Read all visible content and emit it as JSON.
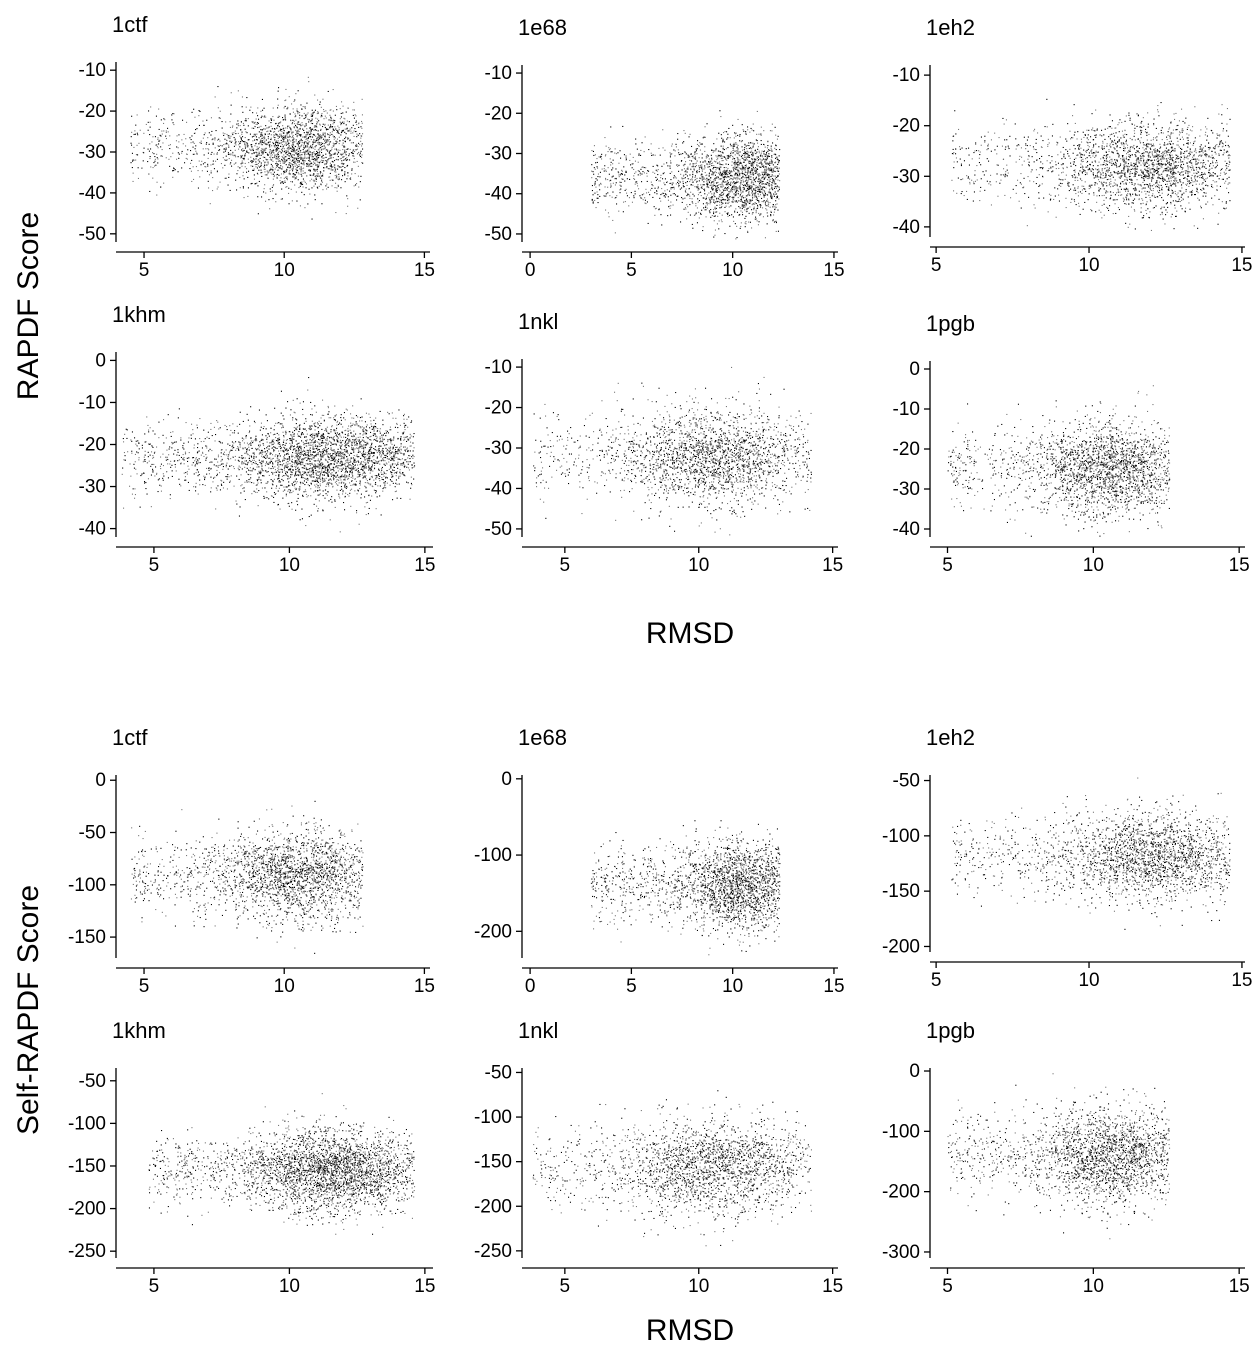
{
  "figure": {
    "blocks": [
      {
        "ylabel": "RAPDF Score",
        "xlabel": "RMSD"
      },
      {
        "ylabel": "Self-RAPDF Score",
        "xlabel": "RMSD"
      }
    ]
  },
  "chart_data": [
    {
      "type": "scatter",
      "title": "1ctf",
      "xlabel": "RMSD",
      "ylabel": "RAPDF Score",
      "xlim": [
        4,
        15.2
      ],
      "ylim": [
        -52,
        -8
      ],
      "xticks": [
        5,
        10,
        15
      ],
      "yticks": [
        -10,
        -20,
        -30,
        -40,
        -50
      ],
      "cloud": {
        "x_min": 4.5,
        "x_max": 12.8,
        "x_center": 10.5,
        "y_center": -29,
        "y_spread": 5.5,
        "n": 2200
      }
    },
    {
      "type": "scatter",
      "title": "1e68",
      "xlabel": "RMSD",
      "ylabel": "RAPDF Score",
      "xlim": [
        -0.4,
        15.2
      ],
      "ylim": [
        -52,
        -8
      ],
      "xticks": [
        0,
        5,
        10,
        15
      ],
      "yticks": [
        -10,
        -20,
        -30,
        -40,
        -50
      ],
      "cloud": {
        "x_min": 3,
        "x_max": 12.3,
        "x_center": 10.5,
        "y_center": -36,
        "y_spread": 5.5,
        "n": 2200
      }
    },
    {
      "type": "scatter",
      "title": "1eh2",
      "xlabel": "RMSD",
      "ylabel": "RAPDF Score",
      "xlim": [
        4.8,
        15.1
      ],
      "ylim": [
        -42,
        -8
      ],
      "xticks": [
        5,
        10,
        15
      ],
      "yticks": [
        -10,
        -20,
        -30,
        -40
      ],
      "cloud": {
        "x_min": 5.5,
        "x_max": 14.6,
        "x_center": 12,
        "y_center": -28,
        "y_spread": 4.5,
        "n": 2200
      }
    },
    {
      "type": "scatter",
      "title": "1khm",
      "xlabel": "RMSD",
      "ylabel": "RAPDF Score",
      "xlim": [
        3.6,
        15.3
      ],
      "ylim": [
        -42,
        2
      ],
      "xticks": [
        5,
        10,
        15
      ],
      "yticks": [
        0,
        -10,
        -20,
        -30,
        -40
      ],
      "cloud": {
        "x_min": 3.8,
        "x_max": 14.6,
        "x_center": 11.5,
        "y_center": -23,
        "y_spread": 5,
        "n": 3000
      }
    },
    {
      "type": "scatter",
      "title": "1nkl",
      "xlabel": "RMSD",
      "ylabel": "RAPDF Score",
      "xlim": [
        3.4,
        15.2
      ],
      "ylim": [
        -52,
        -8
      ],
      "xticks": [
        5,
        10,
        15
      ],
      "yticks": [
        -10,
        -20,
        -30,
        -40,
        -50
      ],
      "cloud": {
        "x_min": 3.8,
        "x_max": 14.2,
        "x_center": 10.5,
        "y_center": -32,
        "y_spread": 6,
        "n": 2200
      }
    },
    {
      "type": "scatter",
      "title": "1pgb",
      "xlabel": "RMSD",
      "ylabel": "RAPDF Score",
      "xlim": [
        4.4,
        15.2
      ],
      "ylim": [
        -42,
        2
      ],
      "xticks": [
        5,
        10,
        15
      ],
      "yticks": [
        0,
        -10,
        -20,
        -30,
        -40
      ],
      "cloud": {
        "x_min": 5,
        "x_max": 12.6,
        "x_center": 10.5,
        "y_center": -25,
        "y_spread": 6,
        "n": 2200
      }
    },
    {
      "type": "scatter",
      "title": "1ctf",
      "xlabel": "RMSD",
      "ylabel": "Self-RAPDF Score",
      "xlim": [
        4,
        15.2
      ],
      "ylim": [
        -170,
        5
      ],
      "xticks": [
        5,
        10,
        15
      ],
      "yticks": [
        0,
        -50,
        -100,
        -150
      ],
      "cloud": {
        "x_min": 4.5,
        "x_max": 12.8,
        "x_center": 10.5,
        "y_center": -90,
        "y_spread": 22,
        "n": 2200
      }
    },
    {
      "type": "scatter",
      "title": "1e68",
      "xlabel": "RMSD",
      "ylabel": "Self-RAPDF Score",
      "xlim": [
        -0.4,
        15.2
      ],
      "ylim": [
        -235,
        5
      ],
      "xticks": [
        0,
        5,
        10,
        15
      ],
      "yticks": [
        0,
        -100,
        -200
      ],
      "cloud": {
        "x_min": 3,
        "x_max": 12.3,
        "x_center": 10.5,
        "y_center": -140,
        "y_spread": 30,
        "n": 2200
      }
    },
    {
      "type": "scatter",
      "title": "1eh2",
      "xlabel": "RMSD",
      "ylabel": "Self-RAPDF Score",
      "xlim": [
        4.8,
        15.1
      ],
      "ylim": [
        -205,
        -45
      ],
      "xticks": [
        5,
        10,
        15
      ],
      "yticks": [
        -50,
        -100,
        -150,
        -200
      ],
      "cloud": {
        "x_min": 5.5,
        "x_max": 14.6,
        "x_center": 12,
        "y_center": -118,
        "y_spread": 20,
        "n": 2200
      }
    },
    {
      "type": "scatter",
      "title": "1khm",
      "xlabel": "RMSD",
      "ylabel": "Self-RAPDF Score",
      "xlim": [
        3.6,
        15.3
      ],
      "ylim": [
        -258,
        -35
      ],
      "xticks": [
        5,
        10,
        15
      ],
      "yticks": [
        -50,
        -100,
        -150,
        -200,
        -250
      ],
      "cloud": {
        "x_min": 4.8,
        "x_max": 14.6,
        "x_center": 11.5,
        "y_center": -155,
        "y_spread": 25,
        "n": 3000
      }
    },
    {
      "type": "scatter",
      "title": "1nkl",
      "xlabel": "RMSD",
      "ylabel": "Self-RAPDF Score",
      "xlim": [
        3.4,
        15.2
      ],
      "ylim": [
        -258,
        -45
      ],
      "xticks": [
        5,
        10,
        15
      ],
      "yticks": [
        -50,
        -100,
        -150,
        -200,
        -250
      ],
      "cloud": {
        "x_min": 3.8,
        "x_max": 14.2,
        "x_center": 10.5,
        "y_center": -155,
        "y_spread": 28,
        "n": 2200
      }
    },
    {
      "type": "scatter",
      "title": "1pgb",
      "xlabel": "RMSD",
      "ylabel": "Self-RAPDF Score",
      "xlim": [
        4.4,
        15.2
      ],
      "ylim": [
        -310,
        5
      ],
      "xticks": [
        5,
        10,
        15
      ],
      "yticks": [
        0,
        -100,
        -200,
        -300
      ],
      "cloud": {
        "x_min": 5,
        "x_max": 12.6,
        "x_center": 10.5,
        "y_center": -140,
        "y_spread": 40,
        "n": 2200
      }
    }
  ]
}
